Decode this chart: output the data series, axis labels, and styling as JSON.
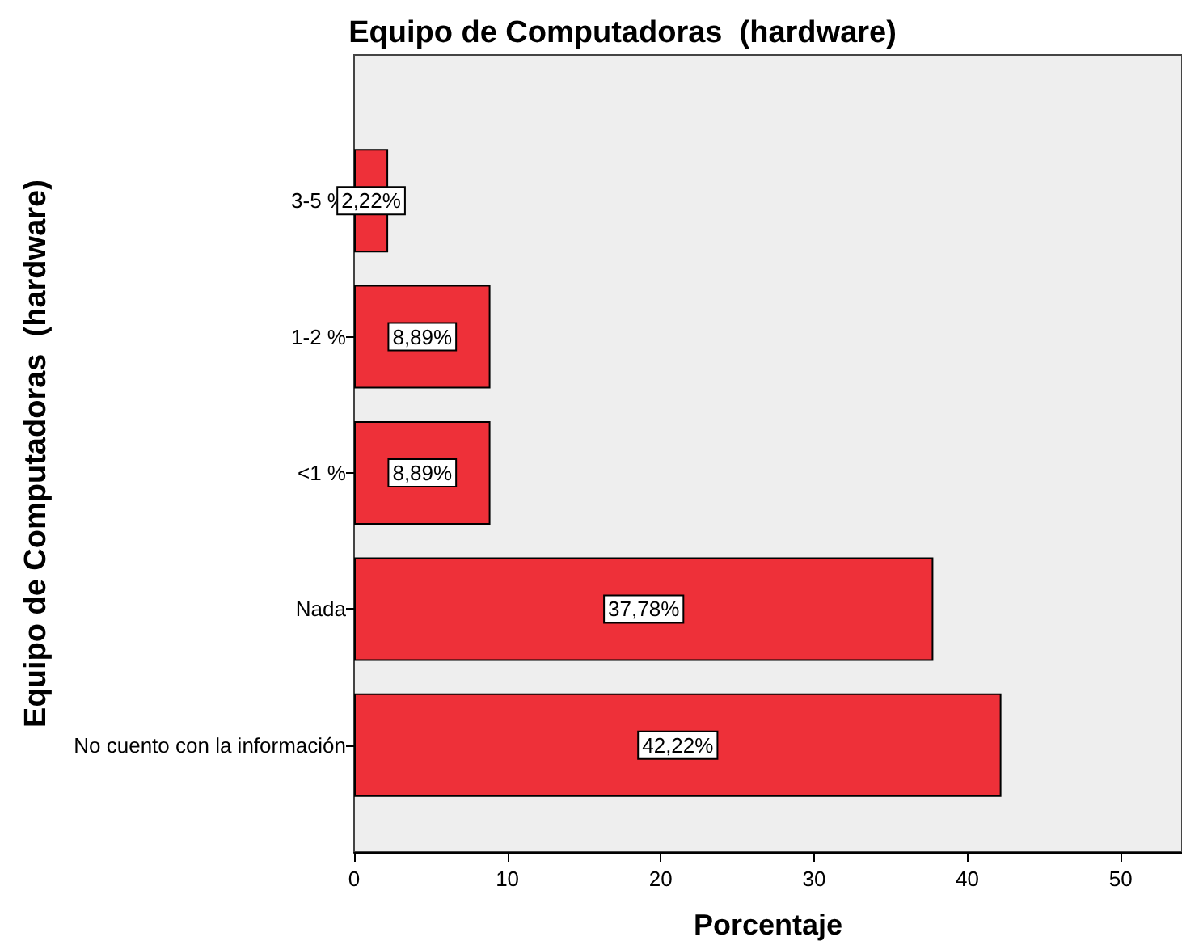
{
  "chart_data": {
    "type": "bar",
    "orientation": "horizontal",
    "title": "Equipo de Computadoras  (hardware)",
    "xlabel": "Porcentaje",
    "ylabel": "Equipo de Computadoras  (hardware)",
    "categories": [
      "3-5 %",
      "1-2 %",
      "<1 %",
      "Nada",
      "No cuento con la información"
    ],
    "values": [
      2.22,
      8.89,
      8.89,
      37.78,
      42.22
    ],
    "value_labels": [
      "2,22%",
      "8,89%",
      "8,89%",
      "37,78%",
      "42,22%"
    ],
    "color": "#ee3039",
    "xlim": [
      0,
      54
    ],
    "xticks": [
      0,
      10,
      20,
      30,
      40,
      50
    ],
    "grid": false
  }
}
